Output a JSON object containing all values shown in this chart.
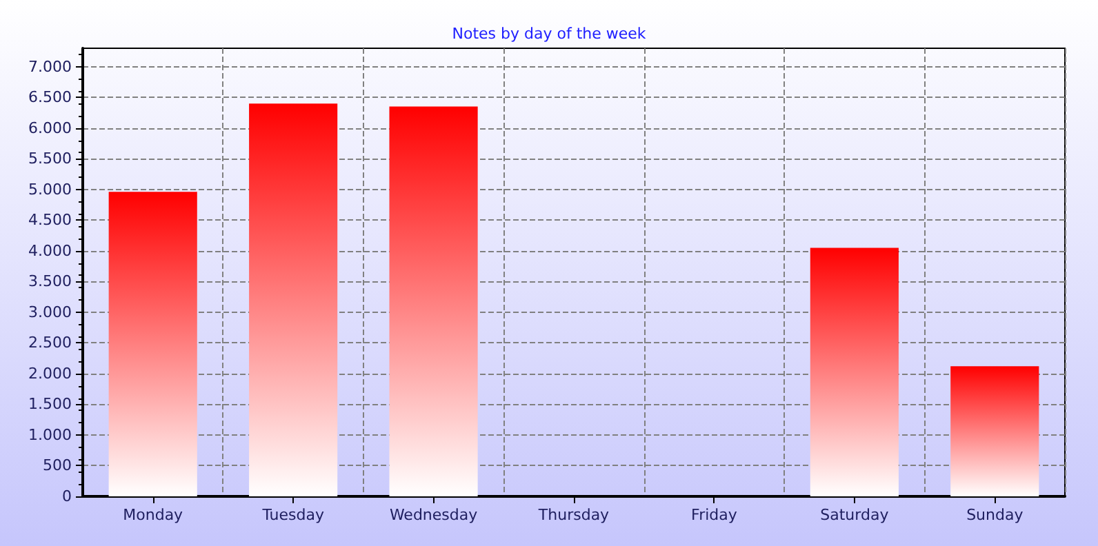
{
  "chart_data": {
    "type": "bar",
    "title": "Notes by day of the week",
    "categories": [
      "Monday",
      "Tuesday",
      "Wednesday",
      "Thursday",
      "Friday",
      "Saturday",
      "Sunday"
    ],
    "values": [
      4960,
      6400,
      6350,
      null,
      null,
      4050,
      2120
    ],
    "color": "#ff0000",
    "ylim": [
      0,
      7300
    ],
    "yticks": [
      0,
      500,
      {
        "value": 1000,
        "label": "1.000"
      },
      {
        "value": 1500,
        "label": "1.500"
      },
      {
        "value": 2000,
        "label": "2.000"
      },
      {
        "value": 2500,
        "label": "2.500"
      },
      {
        "value": 3000,
        "label": "3.000"
      },
      {
        "value": 3500,
        "label": "3.500"
      },
      {
        "value": 4000,
        "label": "4.000"
      },
      {
        "value": 4500,
        "label": "4.500"
      },
      {
        "value": 5000,
        "label": "5.000"
      },
      {
        "value": 5500,
        "label": "5.500"
      },
      {
        "value": 6000,
        "label": "6.000"
      },
      {
        "value": 6500,
        "label": "6.500"
      },
      {
        "value": 7000,
        "label": "7.000"
      }
    ],
    "grid": true
  }
}
